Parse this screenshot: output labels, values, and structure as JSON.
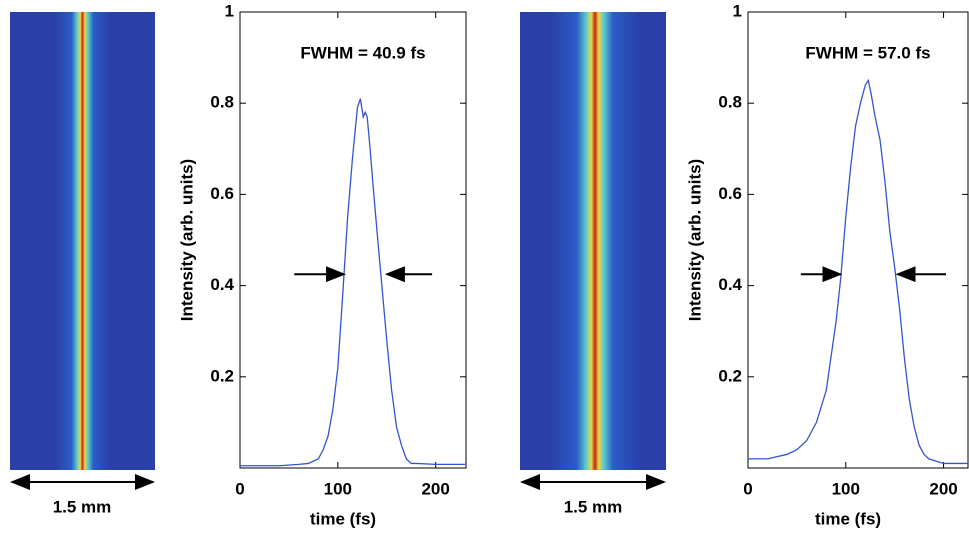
{
  "chart_data": [
    {
      "type": "line",
      "annotation": "FWHM = 40.9 fs",
      "xlabel": "time (fs)",
      "ylabel": "Intensity (arb. units)",
      "color": "#3355cc",
      "x": [
        0,
        20,
        40,
        60,
        70,
        80,
        85,
        90,
        95,
        100,
        105,
        110,
        115,
        120,
        123,
        126,
        128,
        130,
        133,
        136,
        140,
        145,
        150,
        155,
        160,
        165,
        170,
        175,
        180,
        200,
        230
      ],
      "values": [
        0.005,
        0.005,
        0.005,
        0.008,
        0.01,
        0.02,
        0.04,
        0.07,
        0.13,
        0.22,
        0.38,
        0.55,
        0.68,
        0.79,
        0.81,
        0.77,
        0.78,
        0.77,
        0.7,
        0.62,
        0.52,
        0.4,
        0.28,
        0.17,
        0.09,
        0.05,
        0.02,
        0.01,
        0.01,
        0.008,
        0.008
      ],
      "xlim": [
        0,
        231
      ],
      "xticks": [
        0,
        100,
        200
      ],
      "ylim": [
        0,
        1
      ],
      "yticks": [
        0.2,
        0.4,
        0.6,
        0.8,
        1
      ]
    },
    {
      "type": "line",
      "annotation": "FWHM = 57.0 fs",
      "xlabel": "time (fs)",
      "ylabel": "Intensity (arb. units)",
      "color": "#3355cc",
      "x": [
        0,
        20,
        40,
        50,
        60,
        70,
        80,
        90,
        95,
        100,
        105,
        110,
        115,
        120,
        123,
        126,
        130,
        135,
        140,
        145,
        150,
        155,
        160,
        165,
        170,
        175,
        180,
        185,
        200,
        225
      ],
      "values": [
        0.02,
        0.02,
        0.03,
        0.04,
        0.06,
        0.1,
        0.17,
        0.32,
        0.42,
        0.55,
        0.66,
        0.75,
        0.8,
        0.84,
        0.85,
        0.82,
        0.77,
        0.72,
        0.63,
        0.52,
        0.44,
        0.35,
        0.24,
        0.15,
        0.09,
        0.05,
        0.03,
        0.02,
        0.01,
        0.01
      ],
      "xlim": [
        0,
        225
      ],
      "xticks": [
        0,
        100,
        200
      ],
      "ylim": [
        0,
        1
      ],
      "yticks": [
        0.2,
        0.4,
        0.6,
        0.8,
        1
      ]
    }
  ],
  "images": [
    {
      "scale_label": "1.5 mm"
    },
    {
      "scale_label": "1.5 mm"
    }
  ]
}
